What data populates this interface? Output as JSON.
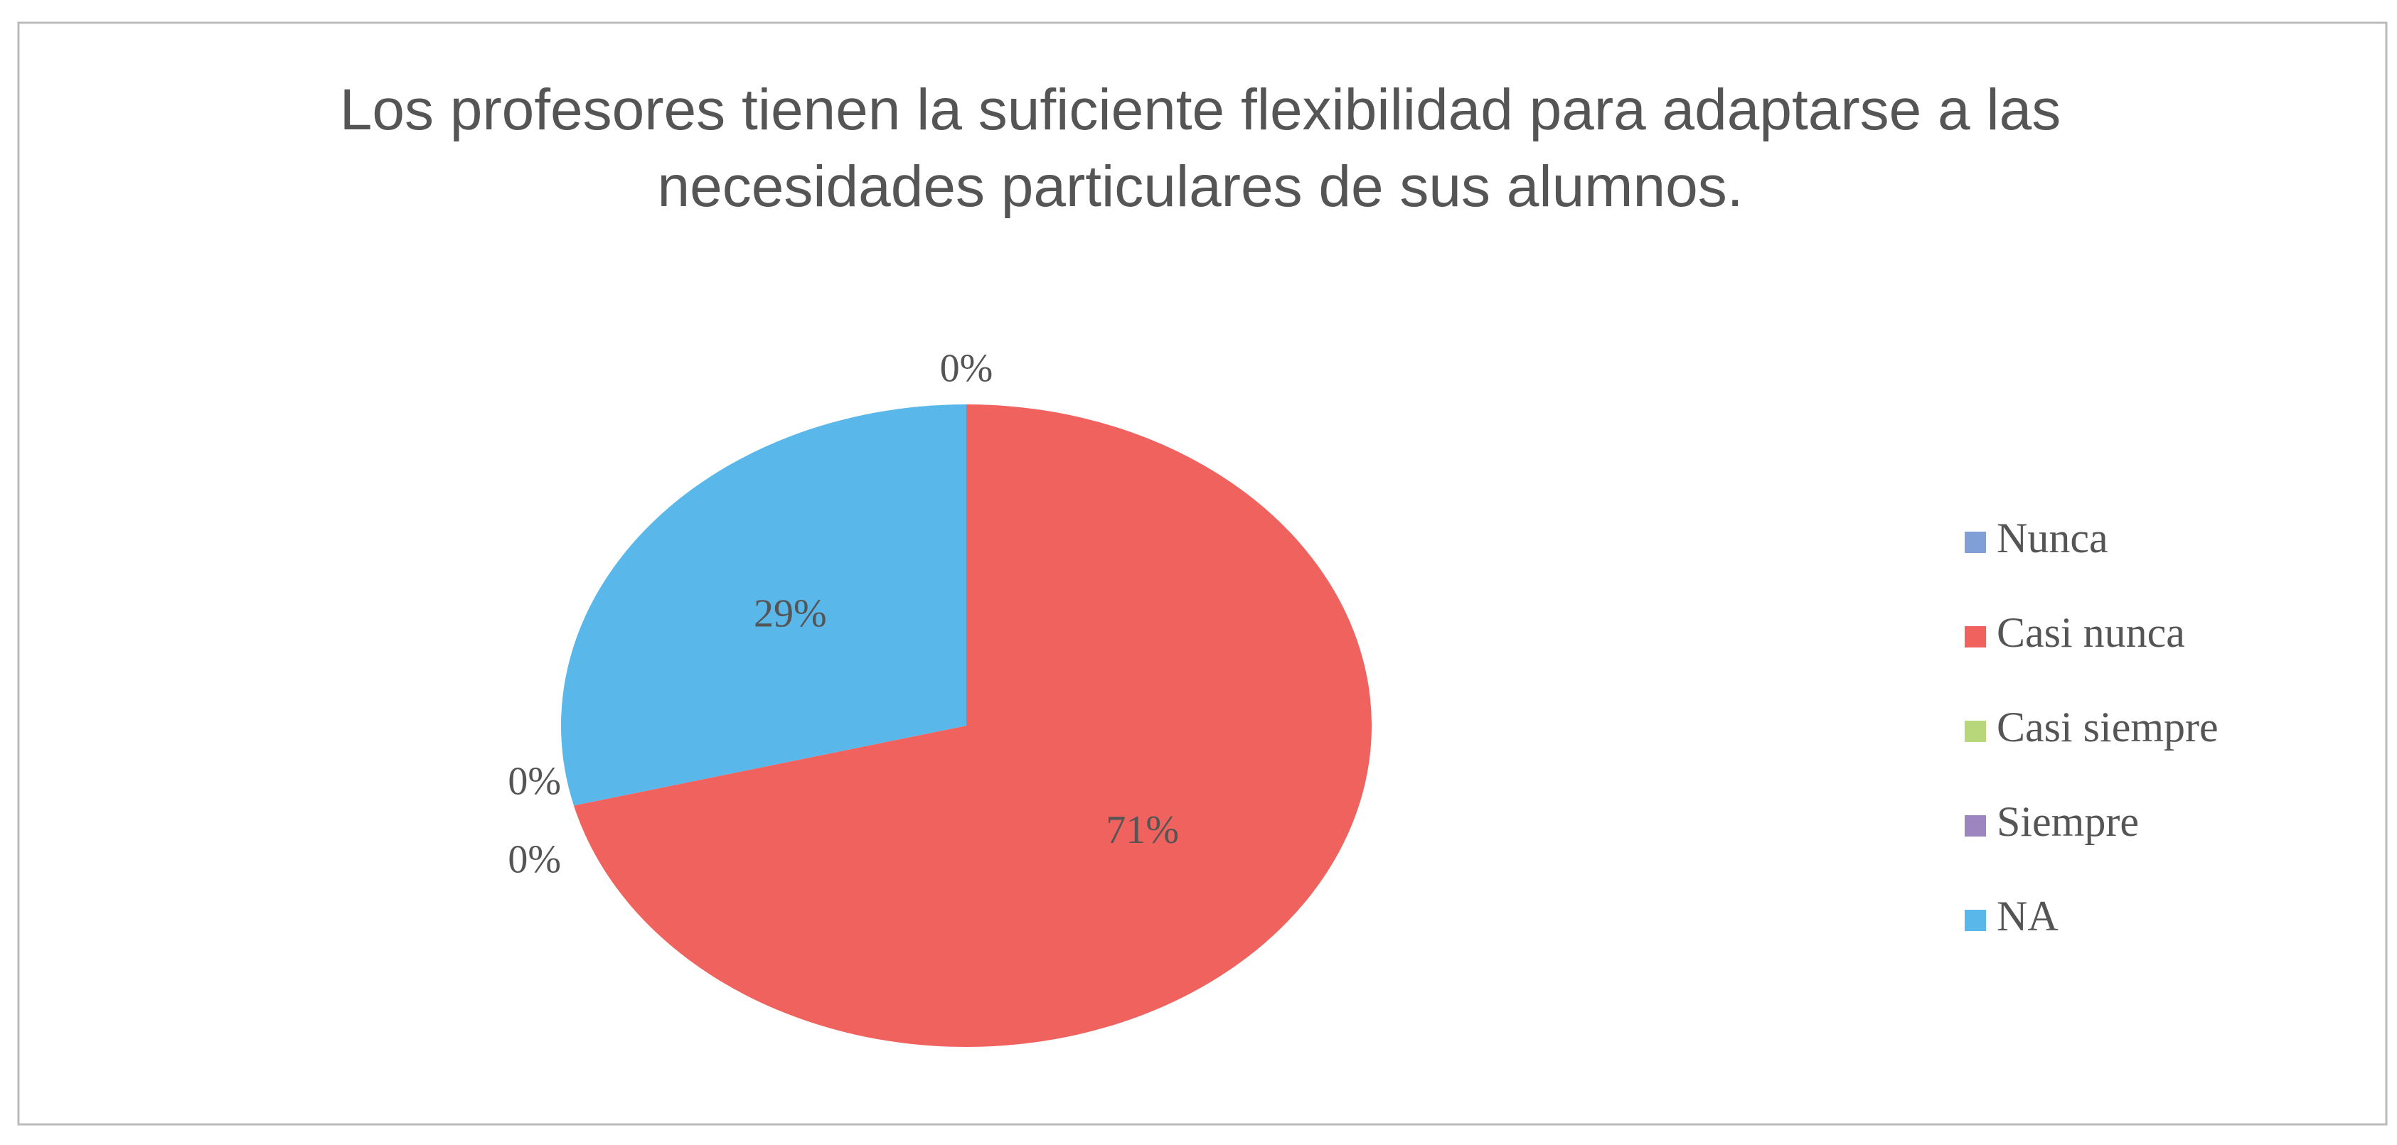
{
  "chart_data": {
    "type": "pie",
    "title": "Los profesores tienen la suficiente flexibilidad para adaptarse a las necesidades particulares de sus alumnos.",
    "categories": [
      "Nunca",
      "Casi nunca",
      "Casi siempre",
      "Siempre",
      "NA"
    ],
    "values": [
      0,
      71,
      0,
      0,
      29
    ],
    "value_labels": [
      "0%",
      "71%",
      "0%",
      "0%",
      "29%"
    ],
    "colors": [
      "#7f9fd6",
      "#f0625e",
      "#b7d77a",
      "#9d86c0",
      "#5ab7ea"
    ],
    "legend": "right"
  }
}
